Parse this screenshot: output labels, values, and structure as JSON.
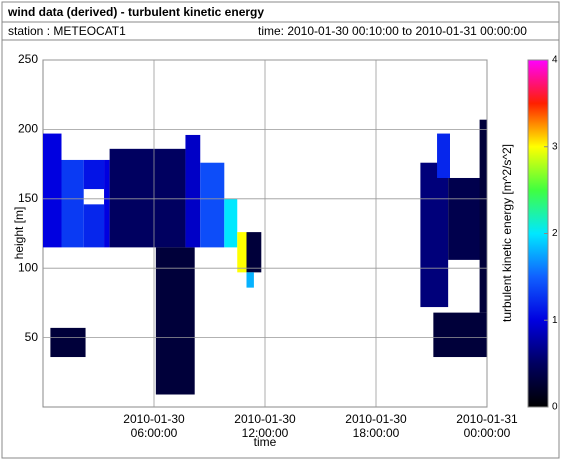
{
  "header": {
    "title": "wind data (derived) - turbulent kinetic energy",
    "station": "station : METEOCAT1",
    "time": "time: 2010-01-30 00:10:00 to 2010-01-31 00:00:00"
  },
  "chart_data": {
    "type": "heatmap",
    "xlabel": "time",
    "ylabel": "height [m]",
    "colorbar_label": "turbulent kinetic energy [m^2/s^2]",
    "xlim": [
      0,
      24
    ],
    "ylim": [
      0,
      250
    ],
    "xticks": [
      {
        "value": 6,
        "label": "2010-01-30 06:00:00"
      },
      {
        "value": 12,
        "label": "2010-01-30 12:00:00"
      },
      {
        "value": 18,
        "label": "2010-01-30 18:00:00"
      },
      {
        "value": 24,
        "label": "2010-01-31 00:00:00"
      }
    ],
    "yticks": [
      50,
      100,
      150,
      200,
      250
    ],
    "clim": [
      0,
      4
    ],
    "cticks": [
      0,
      1,
      2,
      3,
      4
    ],
    "colorscale": [
      "#000000",
      "#000060",
      "#0000e0",
      "#1060ff",
      "#00e8ff",
      "#40ff40",
      "#ffff00",
      "#ff2000",
      "#ff00ff"
    ],
    "grid": true,
    "cells": [
      {
        "x": [
          0,
          1.0
        ],
        "y": [
          115,
          197
        ],
        "value": 1.0
      },
      {
        "x": [
          1.0,
          2.2
        ],
        "y": [
          115,
          178
        ],
        "value": 1.3
      },
      {
        "x": [
          2.2,
          3.3
        ],
        "y": [
          115,
          146
        ],
        "value": 1.2
      },
      {
        "x": [
          2.2,
          3.3
        ],
        "y": [
          157,
          178
        ],
        "value": 1.1
      },
      {
        "x": [
          3.3,
          3.6
        ],
        "y": [
          115,
          178
        ],
        "value": 1.0
      },
      {
        "x": [
          0.4,
          2.3
        ],
        "y": [
          36,
          57
        ],
        "value": 0.3
      },
      {
        "x": [
          3.6,
          7.7
        ],
        "y": [
          115,
          186
        ],
        "value": 0.5
      },
      {
        "x": [
          6.1,
          8.2
        ],
        "y": [
          9,
          115
        ],
        "value": 0.3
      },
      {
        "x": [
          7.7,
          8.5
        ],
        "y": [
          115,
          196
        ],
        "value": 0.9
      },
      {
        "x": [
          8.5,
          9.8
        ],
        "y": [
          115,
          176
        ],
        "value": 1.4
      },
      {
        "x": [
          9.8,
          10.5
        ],
        "y": [
          115,
          150
        ],
        "value": 2.0
      },
      {
        "x": [
          10.5,
          11.0
        ],
        "y": [
          97,
          126
        ],
        "value": 3.0
      },
      {
        "x": [
          11.0,
          11.8
        ],
        "y": [
          97,
          126
        ],
        "value": 0.3
      },
      {
        "x": [
          11.0,
          11.4
        ],
        "y": [
          86,
          97
        ],
        "value": 1.8
      },
      {
        "x": [
          20.4,
          21.9
        ],
        "y": [
          72,
          176
        ],
        "value": 0.6
      },
      {
        "x": [
          21.9,
          24
        ],
        "y": [
          106,
          165
        ],
        "value": 0.4
      },
      {
        "x": [
          21.1,
          24
        ],
        "y": [
          36,
          68
        ],
        "value": 0.3
      },
      {
        "x": [
          23.6,
          24
        ],
        "y": [
          68,
          207
        ],
        "value": 0.3
      },
      {
        "x": [
          21.3,
          22.0
        ],
        "y": [
          165,
          197
        ],
        "value": 1.2
      }
    ]
  }
}
